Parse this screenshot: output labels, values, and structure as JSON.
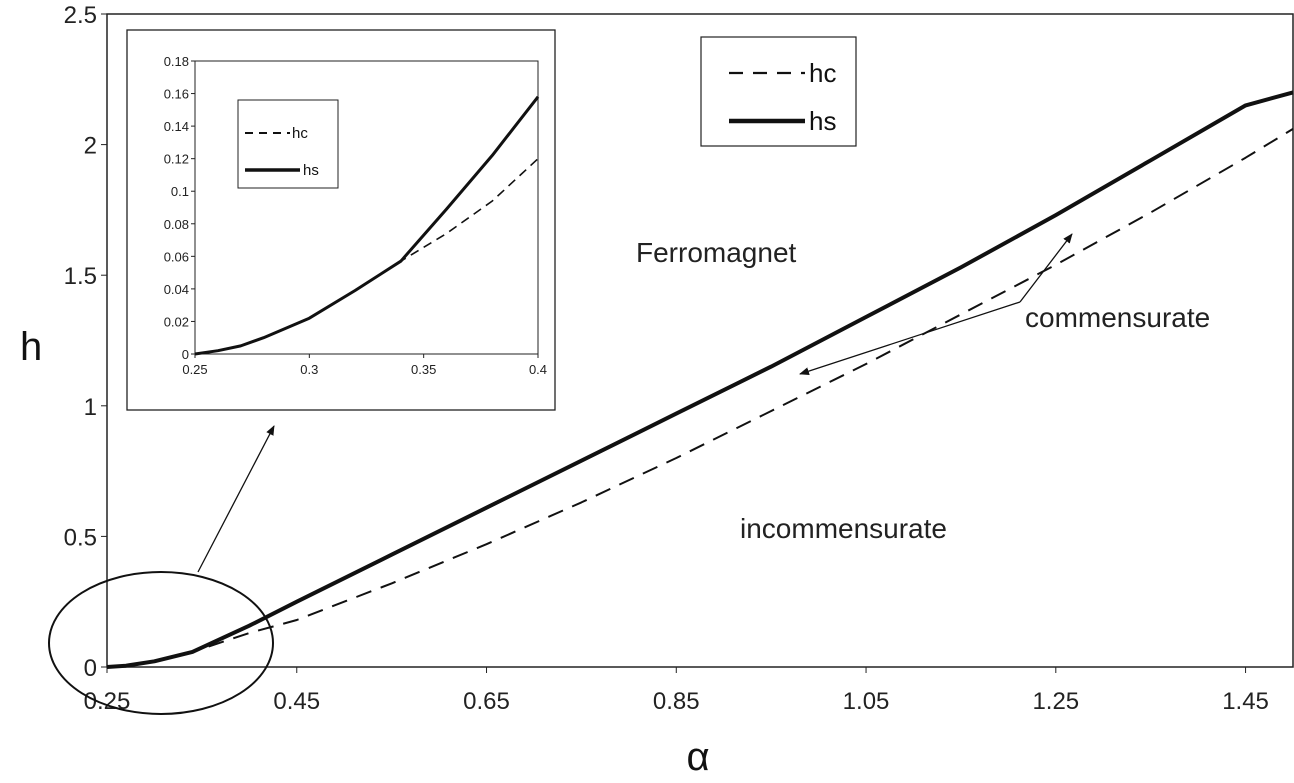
{
  "chart_data": [
    {
      "type": "line",
      "xlabel": "α",
      "ylabel": "h",
      "xlim": [
        0.25,
        1.5
      ],
      "ylim": [
        0,
        2.5
      ],
      "xticks": [
        "0.25",
        "0.45",
        "0.65",
        "0.85",
        "1.05",
        "1.25",
        "1.45"
      ],
      "yticks": [
        "0",
        "0.5",
        "1",
        "1.5",
        "2",
        "2.5"
      ],
      "grid": false,
      "legend_position": "top-right",
      "series": [
        {
          "name": "hc",
          "style": "dashed",
          "x": [
            0.25,
            0.27,
            0.3,
            0.34,
            0.4,
            0.45,
            0.55,
            0.65,
            0.75,
            0.85,
            0.95,
            1.05,
            1.15,
            1.25,
            1.35,
            1.45,
            1.5
          ],
          "y": [
            0,
            0.005,
            0.022,
            0.058,
            0.13,
            0.18,
            0.32,
            0.47,
            0.63,
            0.8,
            0.98,
            1.16,
            1.35,
            1.54,
            1.74,
            1.95,
            2.06
          ]
        },
        {
          "name": "hs",
          "style": "solid",
          "x": [
            0.25,
            0.27,
            0.3,
            0.34,
            0.4,
            0.45,
            0.55,
            0.65,
            0.75,
            0.85,
            0.95,
            1.05,
            1.15,
            1.25,
            1.35,
            1.45,
            1.5
          ],
          "y": [
            0,
            0.005,
            0.022,
            0.058,
            0.158,
            0.25,
            0.43,
            0.61,
            0.79,
            0.97,
            1.15,
            1.34,
            1.53,
            1.73,
            1.94,
            2.15,
            2.2
          ]
        }
      ],
      "annotations": [
        "Ferromagnet",
        "commensurate",
        "incommensurate"
      ]
    },
    {
      "type": "line",
      "xlim": [
        0.25,
        0.4
      ],
      "ylim": [
        0,
        0.18
      ],
      "xticks": [
        "0.25",
        "0.3",
        "0.35",
        "0.4"
      ],
      "yticks": [
        "0",
        "0.02",
        "0.04",
        "0.06",
        "0.08",
        "0.1",
        "0.12",
        "0.14",
        "0.16",
        "0.18"
      ],
      "grid": false,
      "legend_position": "top-left",
      "series": [
        {
          "name": "hc",
          "style": "dashed",
          "x": [
            0.25,
            0.26,
            0.27,
            0.28,
            0.3,
            0.32,
            0.34,
            0.36,
            0.38,
            0.4
          ],
          "y": [
            0,
            0.002,
            0.005,
            0.01,
            0.022,
            0.039,
            0.057,
            0.074,
            0.094,
            0.12
          ]
        },
        {
          "name": "hs",
          "style": "solid",
          "x": [
            0.25,
            0.26,
            0.27,
            0.28,
            0.3,
            0.32,
            0.34,
            0.36,
            0.38,
            0.4
          ],
          "y": [
            0,
            0.002,
            0.005,
            0.01,
            0.022,
            0.039,
            0.057,
            0.089,
            0.122,
            0.158
          ]
        }
      ]
    }
  ]
}
